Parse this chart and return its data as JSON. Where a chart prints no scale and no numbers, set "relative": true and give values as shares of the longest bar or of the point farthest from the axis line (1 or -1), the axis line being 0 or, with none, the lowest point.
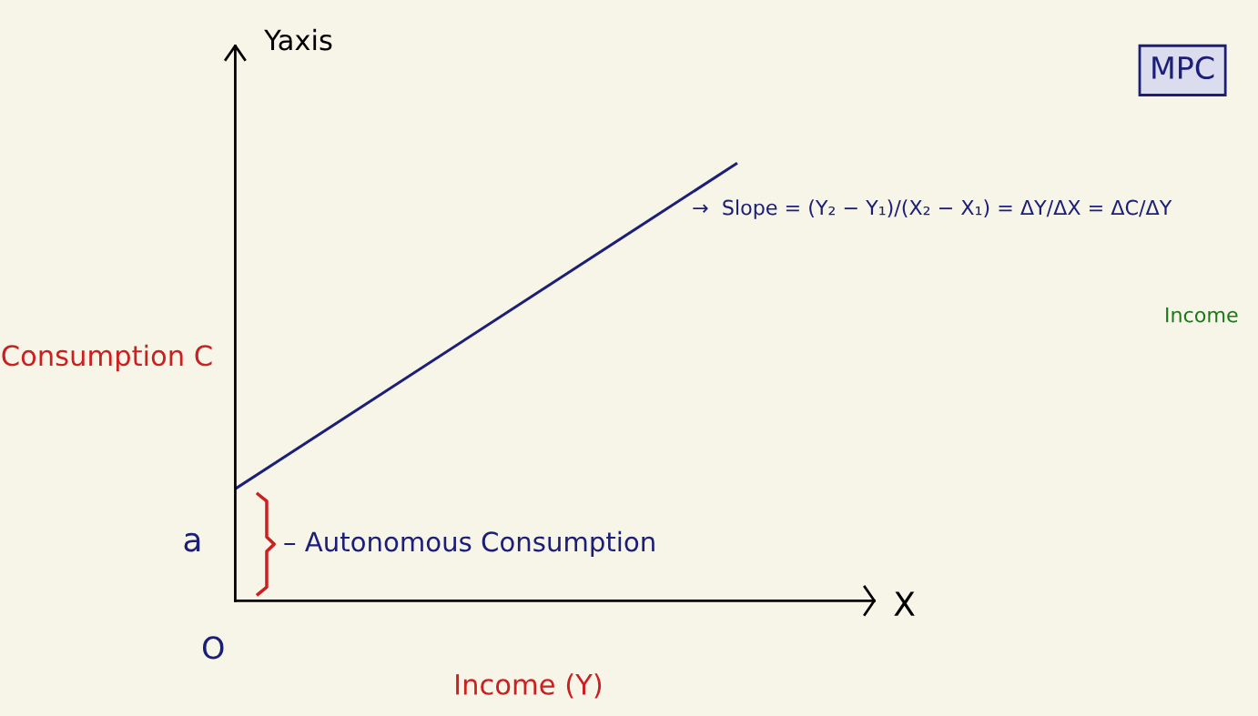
{
  "chart_data": {
    "type": "line",
    "relative": true,
    "legend": false,
    "xlabel": "Income (Y)",
    "ylabel": "Consumption C",
    "categories": [
      null,
      null
    ],
    "series": [
      {
        "color": "#1c1f78",
        "values": [
          0.256,
          1
        ]
      }
    ],
    "annotations": [
      "Yaxis",
      "X",
      "O",
      "a",
      "– Autonomous Consumption",
      "→  Slope = (Y₂ − Y₁)/(X₂ − X₁) = ΔY/ΔX = ΔC/ΔY",
      "MPC",
      "Income"
    ]
  }
}
